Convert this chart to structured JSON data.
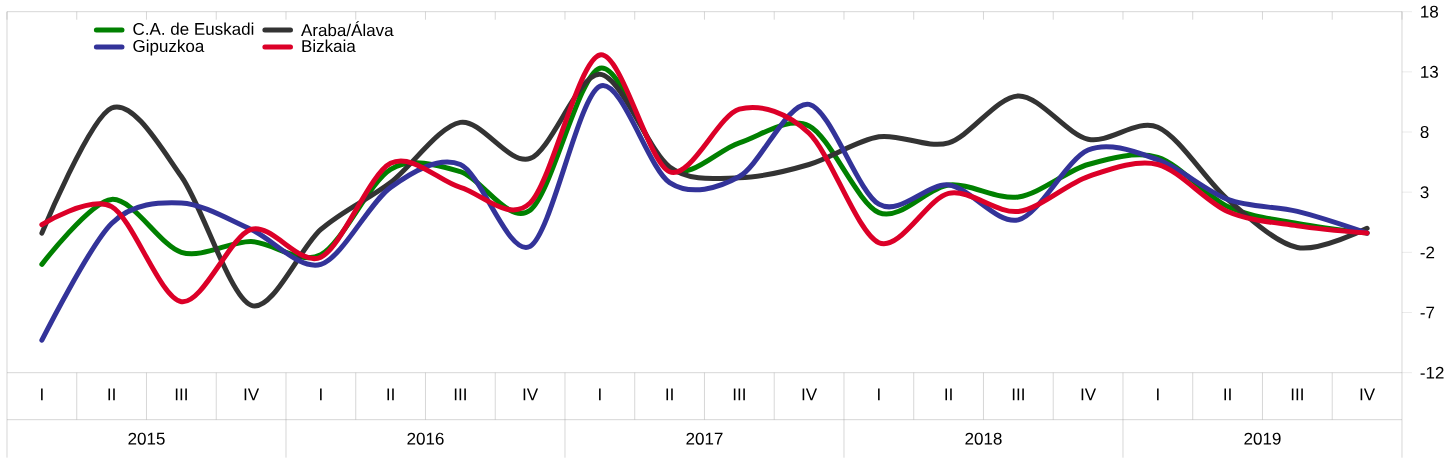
{
  "chart_data": {
    "type": "line",
    "categories": [
      "I",
      "II",
      "III",
      "IV",
      "I",
      "II",
      "III",
      "IV",
      "I",
      "II",
      "III",
      "IV",
      "I",
      "II",
      "III",
      "IV",
      "I",
      "II",
      "III",
      "IV"
    ],
    "series": [
      {
        "name": "C.A. de Euskadi",
        "color": "#008000",
        "values": [
          -3.0,
          2.4,
          -2.0,
          -1.1,
          -2.2,
          4.9,
          4.7,
          1.5,
          13.3,
          4.9,
          7.1,
          8.5,
          1.3,
          3.6,
          2.6,
          5.3,
          5.9,
          1.8,
          0.4,
          -0.4
        ]
      },
      {
        "name": "Araba/Álava",
        "color": "#333333",
        "values": [
          -0.4,
          10.0,
          4.3,
          -6.4,
          -0.1,
          3.8,
          8.8,
          5.8,
          12.8,
          5.1,
          4.2,
          5.3,
          7.6,
          7.1,
          11.0,
          7.4,
          8.4,
          2.4,
          -1.6,
          0.0
        ]
      },
      {
        "name": "Gipuzkoa",
        "color": "#333399",
        "values": [
          -9.3,
          0.4,
          2.1,
          -0.1,
          -3.0,
          3.4,
          5.3,
          -1.5,
          11.8,
          3.8,
          4.3,
          10.3,
          2.0,
          3.6,
          0.7,
          6.5,
          5.7,
          2.4,
          1.4,
          -0.4
        ]
      },
      {
        "name": "Bizkaia",
        "color": "#dc0028",
        "values": [
          0.3,
          1.8,
          -6.1,
          -0.1,
          -2.4,
          5.4,
          3.4,
          2.1,
          14.4,
          4.7,
          9.9,
          7.9,
          -1.2,
          2.9,
          1.4,
          4.3,
          5.3,
          1.4,
          0.2,
          -0.4
        ]
      }
    ],
    "annotations": [
      "2015",
      "2016",
      "2017",
      "2018",
      "2019"
    ],
    "ylim": [
      -12,
      18
    ],
    "yticks": [
      -12,
      -7,
      -2,
      3,
      8,
      13,
      18
    ],
    "legend": "top left",
    "grid": false,
    "marker": "none",
    "line_style": "solid"
  }
}
